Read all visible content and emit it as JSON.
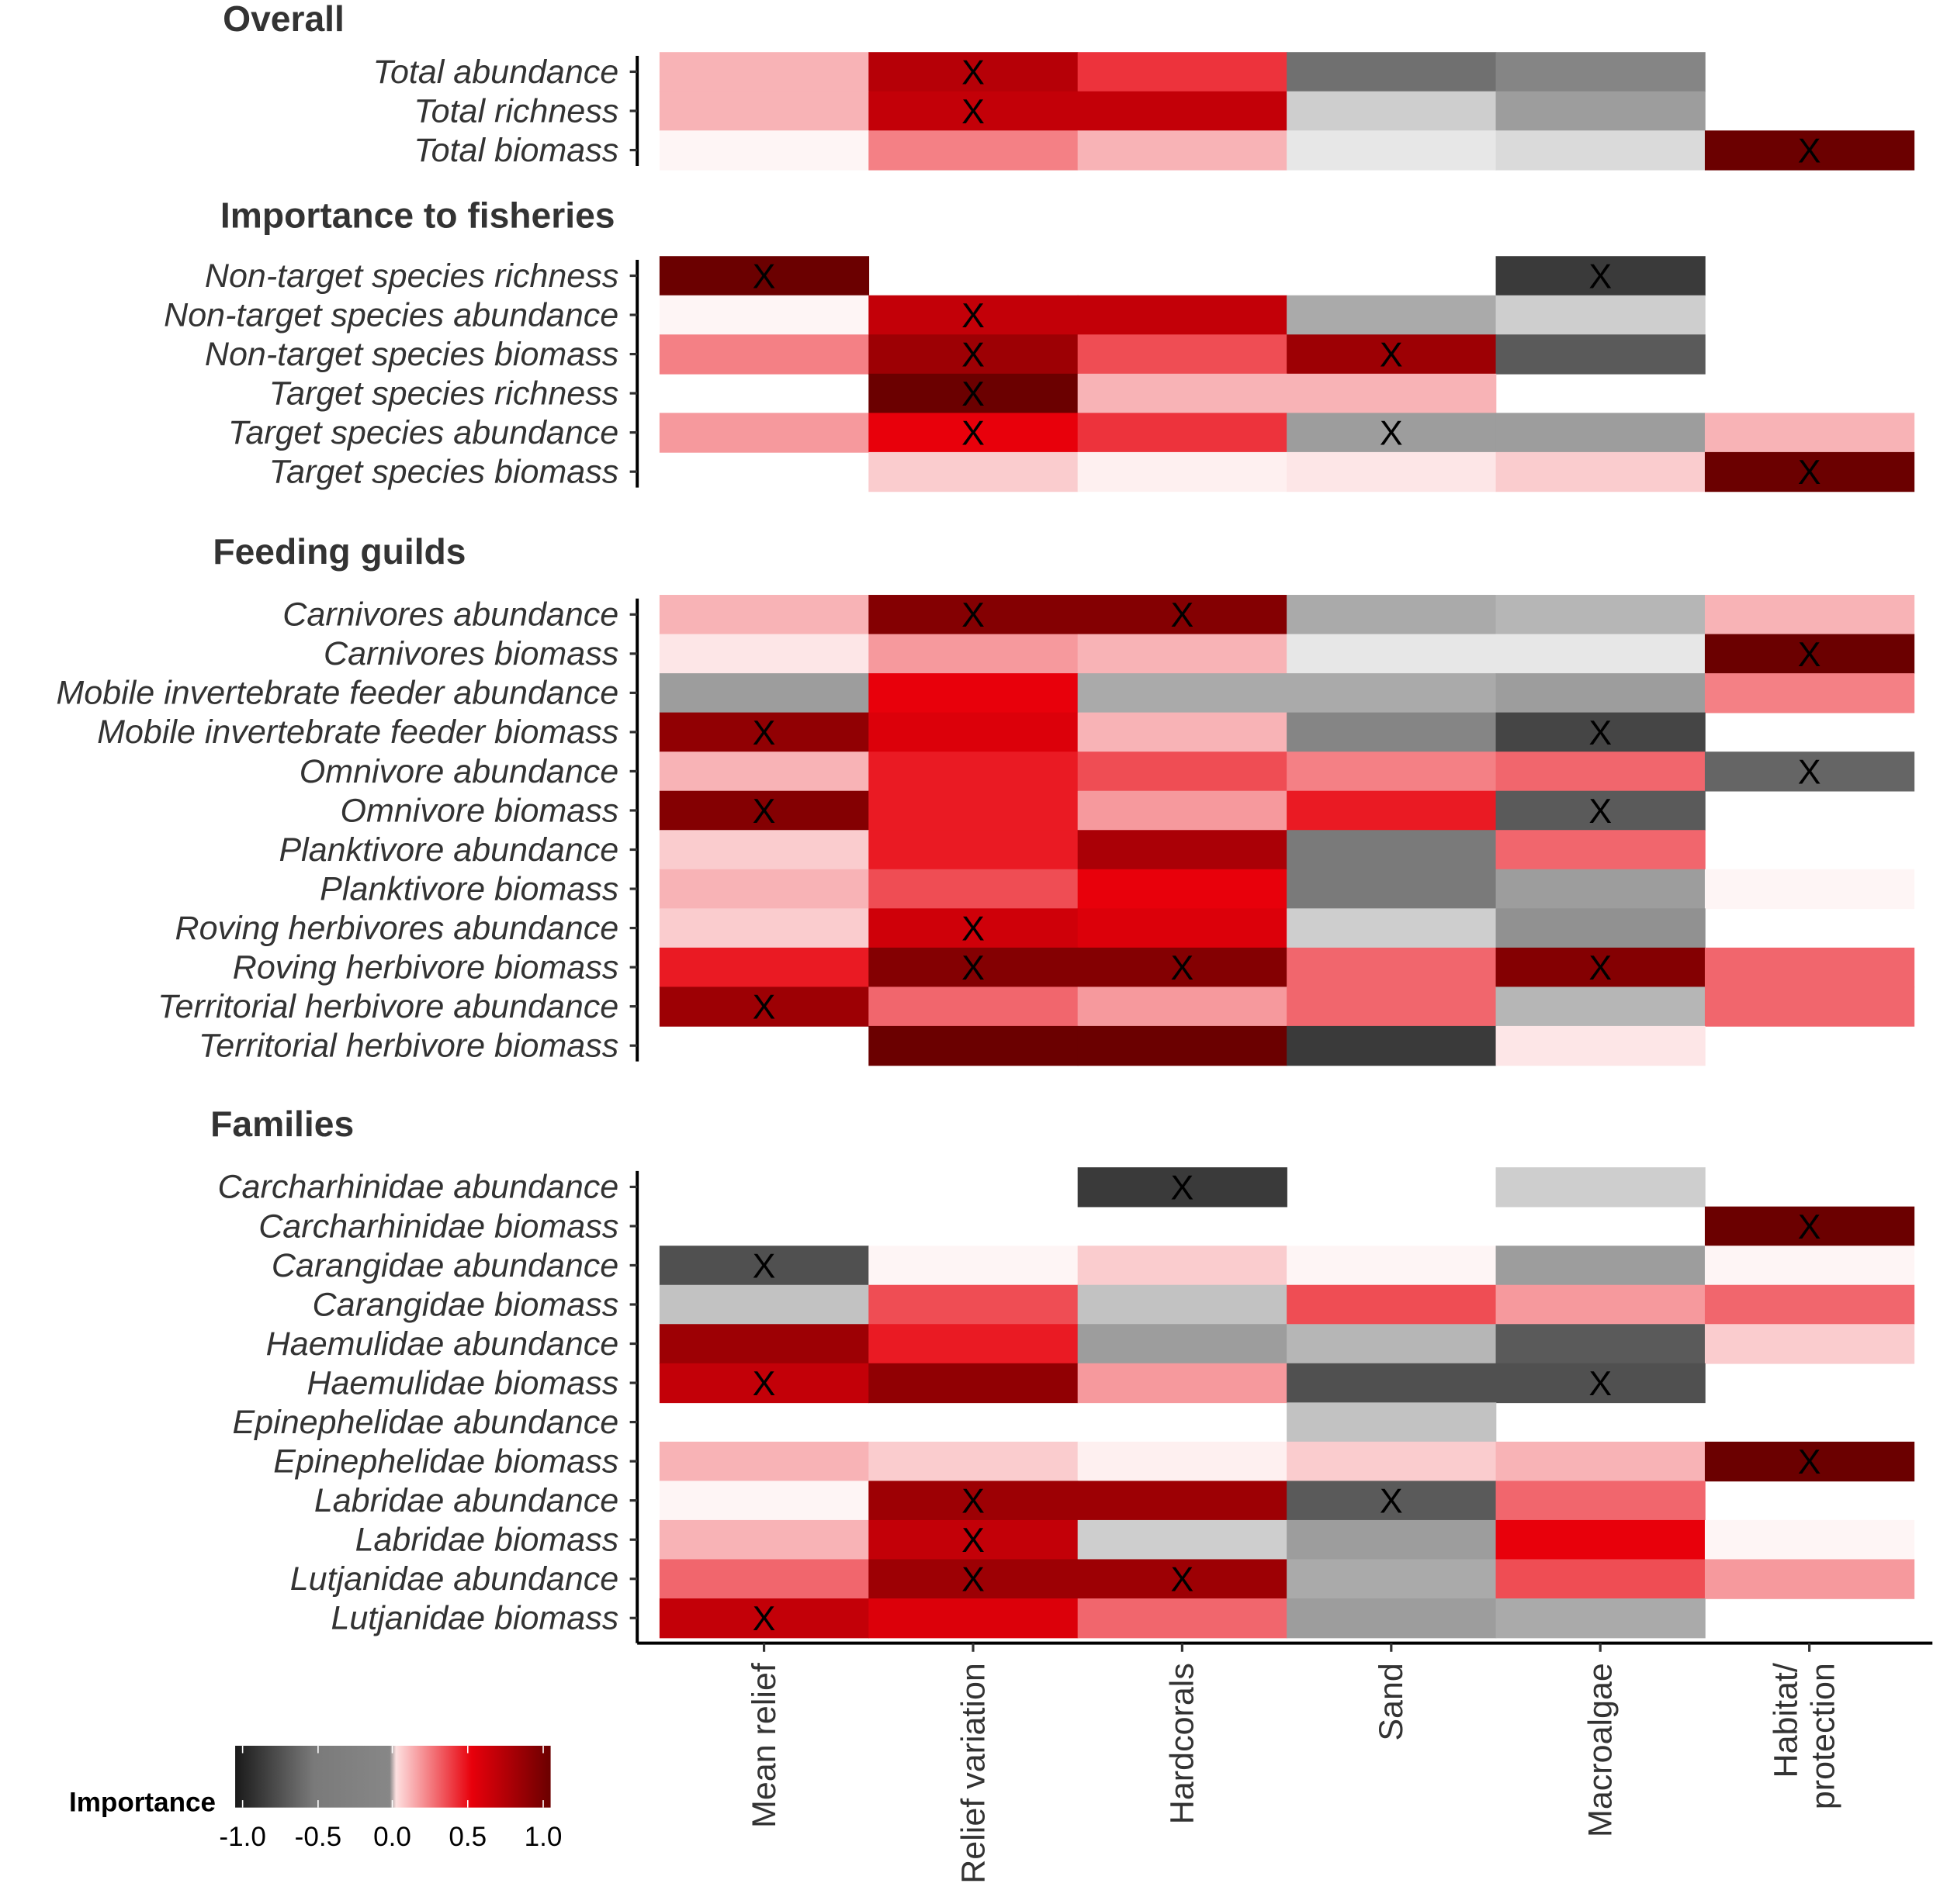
{
  "chart_data": {
    "type": "heatmap",
    "columns": [
      "Mean relief",
      "Relief variation",
      "Hardcorals",
      "Sand",
      "Macroalgae",
      "Habitat/ protection"
    ],
    "legend": {
      "title": "Importance",
      "ticks": [
        "-1.0",
        "-0.5",
        "0.0",
        "0.5",
        "1.0"
      ],
      "range": [
        -1,
        1
      ],
      "placement": "bottom-left"
    },
    "colors": {
      "neg_end": "#1a1a1a",
      "neg_mid": "#858585",
      "zero": "#ffffff",
      "pos_mid": "#e8000b",
      "pos_end": "#6b0000"
    },
    "sections": [
      {
        "title": "Overall",
        "rows": [
          {
            "label": "Total abundance",
            "values": [
              0.15,
              0.7,
              0.4,
              -0.6,
              -0.5,
              null
            ],
            "marks": [
              1
            ]
          },
          {
            "label": "Total richness",
            "values": [
              0.15,
              0.65,
              0.65,
              -0.2,
              -0.4,
              null
            ],
            "marks": [
              1
            ]
          },
          {
            "label": "Total biomass",
            "values": [
              0.02,
              0.25,
              0.15,
              -0.1,
              -0.15,
              1.0
            ],
            "marks": [
              5
            ]
          }
        ]
      },
      {
        "title": "Importance to fisheries",
        "rows": [
          {
            "label": "Non-target species richness",
            "values": [
              1.0,
              null,
              null,
              null,
              -0.85,
              null
            ],
            "marks": [
              0,
              4
            ]
          },
          {
            "label": "Non-target species abundance",
            "values": [
              0.02,
              0.65,
              0.65,
              -0.35,
              -0.2,
              null
            ],
            "marks": [
              1
            ]
          },
          {
            "label": "Non-target species biomass",
            "values": [
              0.25,
              0.8,
              0.35,
              0.8,
              -0.7,
              null
            ],
            "marks": [
              1,
              3
            ]
          },
          {
            "label": "Target species richness",
            "values": [
              null,
              1.0,
              0.15,
              0.15,
              null,
              null
            ],
            "marks": [
              1
            ]
          },
          {
            "label": "Target species abundance",
            "values": [
              0.2,
              0.5,
              0.4,
              -0.4,
              -0.4,
              0.15
            ],
            "marks": [
              1,
              3
            ]
          },
          {
            "label": "Target species biomass",
            "values": [
              null,
              0.1,
              0.03,
              0.05,
              0.1,
              1.0
            ],
            "marks": [
              5
            ]
          }
        ]
      },
      {
        "title": "Feeding guilds",
        "rows": [
          {
            "label": "Carnivores abundance",
            "values": [
              0.15,
              0.9,
              0.9,
              -0.35,
              -0.3,
              0.15
            ],
            "marks": [
              1,
              2
            ]
          },
          {
            "label": "Carnivores biomass",
            "values": [
              0.05,
              0.2,
              0.15,
              -0.1,
              -0.1,
              1.0
            ],
            "marks": [
              5
            ]
          },
          {
            "label": "Mobile invertebrate feeder abundance",
            "values": [
              -0.4,
              0.5,
              -0.35,
              -0.35,
              -0.4,
              0.25
            ],
            "marks": []
          },
          {
            "label": "Mobile invertebrate feeder biomass",
            "values": [
              0.85,
              0.55,
              0.15,
              -0.5,
              -0.8,
              null
            ],
            "marks": [
              0,
              4
            ]
          },
          {
            "label": "Omnivore abundance",
            "values": [
              0.15,
              0.45,
              0.35,
              0.25,
              0.3,
              -0.65
            ],
            "marks": [
              5
            ]
          },
          {
            "label": "Omnivore biomass",
            "values": [
              0.9,
              0.45,
              0.2,
              0.45,
              -0.7,
              null
            ],
            "marks": [
              0,
              4
            ]
          },
          {
            "label": "Planktivore abundance",
            "values": [
              0.1,
              0.45,
              0.75,
              -0.55,
              0.3,
              null
            ],
            "marks": []
          },
          {
            "label": "Planktivore biomass",
            "values": [
              0.15,
              0.35,
              0.5,
              -0.55,
              -0.4,
              0.02
            ],
            "marks": []
          },
          {
            "label": "Roving herbivores abundance",
            "values": [
              0.1,
              0.6,
              0.55,
              -0.2,
              -0.45,
              null
            ],
            "marks": [
              1
            ]
          },
          {
            "label": "Roving herbivore biomass",
            "values": [
              0.45,
              0.9,
              0.9,
              0.3,
              0.9,
              0.3
            ],
            "marks": [
              1,
              2,
              4
            ]
          },
          {
            "label": "Territorial herbivore abundance",
            "values": [
              0.8,
              0.3,
              0.2,
              0.3,
              -0.3,
              0.3
            ],
            "marks": [
              0
            ]
          },
          {
            "label": "Territorial herbivore biomass",
            "values": [
              null,
              1.0,
              1.0,
              -0.85,
              0.05,
              null
            ],
            "marks": []
          }
        ]
      },
      {
        "title": "Families",
        "rows": [
          {
            "label": "Carcharhinidae abundance",
            "values": [
              null,
              null,
              -0.85,
              null,
              -0.2,
              null
            ],
            "marks": [
              2
            ]
          },
          {
            "label": "Carcharhinidae biomass",
            "values": [
              null,
              null,
              null,
              null,
              null,
              1.0
            ],
            "marks": [
              5
            ]
          },
          {
            "label": "Carangidae abundance",
            "values": [
              -0.75,
              0.02,
              0.1,
              0.02,
              -0.4,
              0.02
            ],
            "marks": [
              0
            ]
          },
          {
            "label": "Carangidae biomass",
            "values": [
              -0.25,
              0.35,
              -0.25,
              0.35,
              0.2,
              0.3
            ],
            "marks": []
          },
          {
            "label": "Haemulidae abundance",
            "values": [
              0.8,
              0.45,
              -0.4,
              -0.3,
              -0.7,
              0.1
            ],
            "marks": []
          },
          {
            "label": "Haemulidae biomass",
            "values": [
              0.65,
              0.85,
              0.2,
              -0.75,
              -0.75,
              null
            ],
            "marks": [
              0,
              4
            ]
          },
          {
            "label": "Epinephelidae abundance",
            "values": [
              null,
              null,
              null,
              -0.25,
              null,
              null
            ],
            "marks": []
          },
          {
            "label": "Epinephelidae biomass",
            "values": [
              0.15,
              0.1,
              0.03,
              0.1,
              0.15,
              1.0
            ],
            "marks": [
              5
            ]
          },
          {
            "label": "Labridae abundance",
            "values": [
              0.02,
              0.8,
              0.8,
              -0.7,
              0.3,
              null
            ],
            "marks": [
              1,
              3
            ]
          },
          {
            "label": "Labridae biomass",
            "values": [
              0.15,
              0.65,
              -0.2,
              -0.4,
              0.5,
              0.02
            ],
            "marks": [
              1
            ]
          },
          {
            "label": "Lutjanidae abundance",
            "values": [
              0.3,
              0.8,
              0.8,
              -0.35,
              0.35,
              0.2
            ],
            "marks": [
              1,
              2
            ]
          },
          {
            "label": "Lutjanidae biomass",
            "values": [
              0.65,
              0.55,
              0.3,
              -0.4,
              -0.35,
              null
            ],
            "marks": [
              0
            ]
          }
        ]
      }
    ],
    "mark_symbol": "X"
  }
}
